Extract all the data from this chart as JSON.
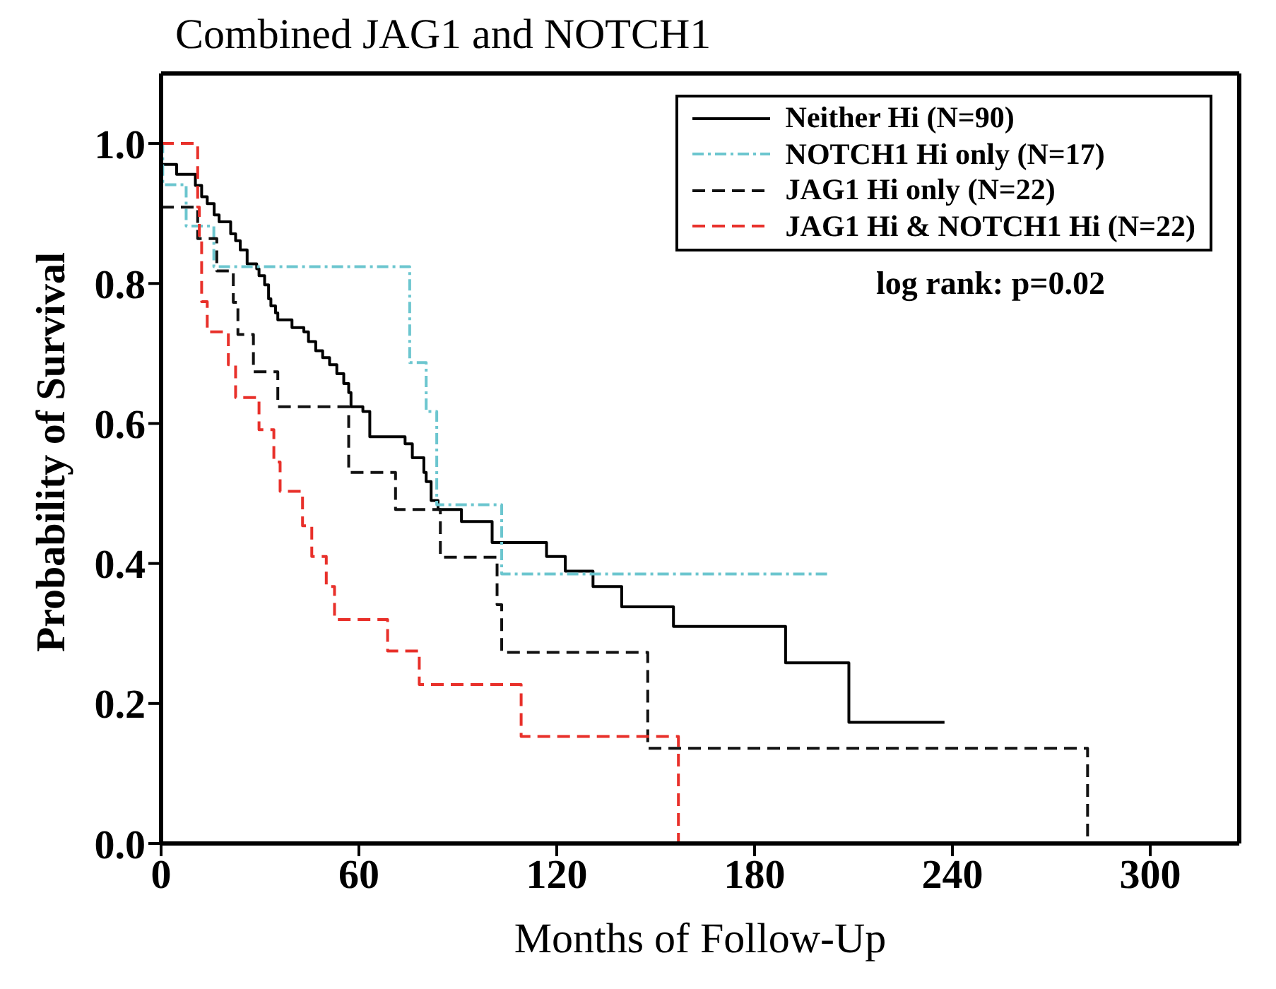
{
  "chart_data": {
    "type": "step",
    "title": "Combined JAG1 and NOTCH1",
    "xlabel": "Months of Follow-Up",
    "ylabel": "Probability of Survival",
    "annotations": [
      "log rank: p=0.02"
    ],
    "xlim": [
      0,
      327
    ],
    "xticks": [
      0,
      60,
      120,
      180,
      240,
      300
    ],
    "ylim": [
      0,
      1.1
    ],
    "yticks": [
      {
        "value": 0,
        "label": "0.0"
      },
      {
        "value": 0.2,
        "label": "0.2"
      },
      {
        "value": 0.4,
        "label": "0.4"
      },
      {
        "value": 0.6,
        "label": "0.6"
      },
      {
        "value": 0.8,
        "label": "0.8"
      },
      {
        "value": 1,
        "label": "1.0"
      }
    ],
    "legend": "top right",
    "series": [
      {
        "name": "Neither Hi (N=90)",
        "color": "#000000",
        "line_style": "solid",
        "x": [
          0,
          4.7,
          10.4,
          12.3,
          14,
          16.1,
          17.6,
          21.1,
          22.6,
          24,
          26.1,
          29,
          29.7,
          31.4,
          32.6,
          33.3,
          34.7,
          35.4,
          39.7,
          43.3,
          44.7,
          46.9,
          49,
          51.1,
          53.3,
          55.4,
          56.9,
          57.6,
          61.2,
          63.3,
          74,
          76.2,
          79.7,
          80.4,
          81.9,
          84,
          91.1,
          100.4,
          116.9,
          122.6,
          131,
          139.7,
          155.4,
          189.4,
          208.6,
          237.6
        ],
        "values": [
          0.97,
          0.956,
          0.94,
          0.924,
          0.914,
          0.898,
          0.888,
          0.871,
          0.861,
          0.848,
          0.828,
          0.821,
          0.811,
          0.798,
          0.778,
          0.768,
          0.758,
          0.748,
          0.737,
          0.731,
          0.717,
          0.704,
          0.694,
          0.684,
          0.671,
          0.657,
          0.644,
          0.624,
          0.617,
          0.581,
          0.571,
          0.551,
          0.53,
          0.517,
          0.49,
          0.477,
          0.46,
          0.43,
          0.41,
          0.389,
          0.367,
          0.338,
          0.31,
          0.258,
          0.173,
          0.173
        ]
      },
      {
        "name": "NOTCH1 Hi only (N=17)",
        "color": "#6cc6cf",
        "line_style": "dashdot",
        "x": [
          0,
          0.5,
          7.6,
          16,
          75.4,
          80.4,
          83.6,
          103.3,
          202.6
        ],
        "values": [
          1,
          0.941,
          0.882,
          0.824,
          0.687,
          0.617,
          0.484,
          0.385,
          0.385
        ]
      },
      {
        "name": "JAG1 Hi only (N=22)",
        "color": "#111111",
        "line_style": "dashed",
        "x": [
          0,
          11.1,
          16.9,
          21.9,
          23.3,
          28,
          35.4,
          56.9,
          71.1,
          84.7,
          101.9,
          103.3,
          147.6,
          281
        ],
        "values": [
          0.909,
          0.864,
          0.818,
          0.773,
          0.727,
          0.674,
          0.624,
          0.53,
          0.477,
          0.409,
          0.341,
          0.273,
          0.136,
          0
        ]
      },
      {
        "name": "JAG1 Hi & NOTCH1 Hi (N=22)",
        "color": "#e8302a",
        "line_style": "dashed",
        "x": [
          0,
          11.1,
          11.6,
          12.3,
          14,
          20.4,
          22.6,
          29.7,
          34.2,
          36.1,
          42.9,
          45.7,
          50.1,
          52.6,
          68.7,
          78.3,
          109.2,
          156.9
        ],
        "values": [
          1,
          0.909,
          0.864,
          0.774,
          0.731,
          0.684,
          0.637,
          0.591,
          0.545,
          0.503,
          0.454,
          0.41,
          0.367,
          0.32,
          0.275,
          0.227,
          0.153,
          0
        ]
      }
    ]
  }
}
